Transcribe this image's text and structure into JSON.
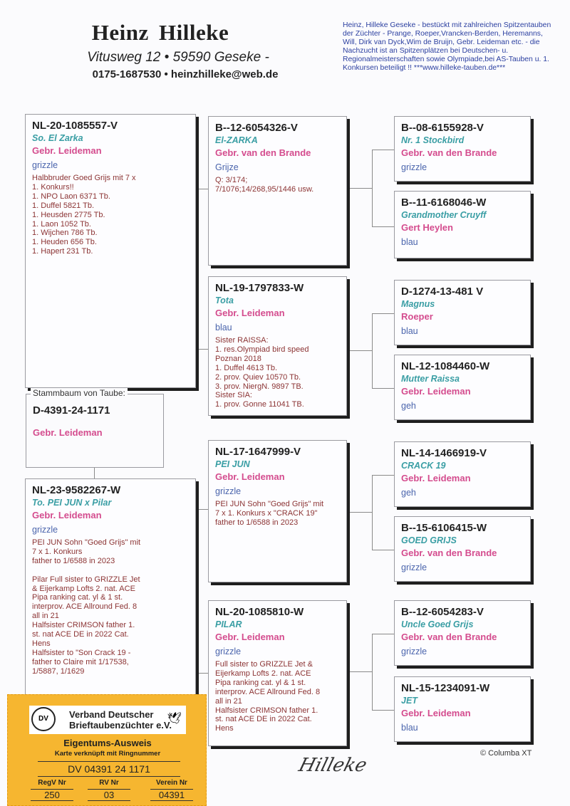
{
  "header": {
    "title": "Heinz  Hilleke",
    "address": "Vitusweg 12 • 59590  Geseke -",
    "contact": "0175-1687530 • heinzhilleke@web.de",
    "blurb": "Heinz, Hilleke Geseke - bestückt mit zahlreichen Spitzentauben der Züchter - Prange, Roeper,Vrancken-Berden, Heremanns, Will, Dirk van Dyck,Wim de Bruijn, Gebr. Leideman  etc. - die Nachzucht ist  an Spitzenplätzen bei  Deutschen- u. Regionalmeisterschaften sowie Olympiade,bei  AS-Tauben u. 1. Konkursen beteiligt !! ***www.hilleke-tauben.de***"
  },
  "subject": {
    "legend": "Stammbaum von Taube:",
    "ring": "D-4391-24-1171",
    "breeder": "Gebr. Leideman"
  },
  "pedigree": {
    "sire": {
      "ring": "NL-20-1085557-V",
      "name": "So. El Zarka",
      "breeder": "Gebr. Leideman",
      "color": "grizzle",
      "notes": [
        "Halbbruder Goed Grijs mit 7 x",
        "1. Konkurs!!",
        "1. NPO Laon 6371 Tb.",
        "1. Duffel 5821 Tb.",
        "1. Heusden 2775 Tb.",
        "1. Laon 1052 Tb.",
        "1. Wijchen 786 Tb.",
        "1. Heuden 656 Tb.",
        "1. Hapert 231 Tb."
      ]
    },
    "dam": {
      "ring": "NL-23-9582267-W",
      "name": "To. PEI JUN  x Pilar",
      "breeder": "Gebr. Leideman",
      "color": "grizzle",
      "notes": [
        "PEI JUN Sohn \"Goed Grijs\" mit",
        "7 x 1. Konkurs",
        "father to 1/6588 in 2023",
        "",
        "Pilar Full sister to GRIZZLE Jet",
        "& Eijerkamp Lofts 2. nat. ACE",
        "Pipa ranking cat. yl & 1 st.",
        "interprov. ACE Allround Fed. 8",
        "all in 21",
        "Halfsister CRIMSON  father 1.",
        "st. nat ACE DE in 2022 Cat.",
        "Hens",
        "Halfsister to \"Son Crack 19 -",
        "father to Claire mit 1/17538,",
        "1/5887, 1/1629"
      ]
    },
    "ss": {
      "ring": "B--12-6054326-V",
      "name": "El-ZARKA",
      "breeder": "Gebr. van den Brande",
      "color": "Grijze",
      "notes": [
        "Q: 3/174;",
        "7/1076;14/268,95/1446 usw."
      ]
    },
    "sd": {
      "ring": "NL-19-1797833-W",
      "name": "Tota",
      "breeder": "Gebr. Leideman",
      "color": "blau",
      "notes": [
        "Sister RAISSA:",
        "1. res.Olympiad bird speed",
        "Poznan 2018",
        "1. Duffel 4613 Tb.",
        "2. prov. Quiev 10570 Tb.",
        "3. prov. NiergN. 9897 TB.",
        "Sister SIA:",
        "1. prov. Gonne 11041 TB."
      ]
    },
    "ds": {
      "ring": "NL-17-1647999-V",
      "name": "PEI JUN",
      "breeder": "Gebr. Leideman",
      "color": "grizzle",
      "notes": [
        "PEI JUN Sohn \"Goed Grijs\" mit",
        "7 x 1. Konkurs x \"CRACK 19\"",
        "father to 1/6588 in 2023"
      ]
    },
    "dd": {
      "ring": "NL-20-1085810-W",
      "name": "PILAR",
      "breeder": "Gebr. Leideman",
      "color": "grizzle",
      "notes": [
        "Full sister to GRIZZLE Jet &",
        "Eijerkamp Lofts 2. nat. ACE",
        "Pipa ranking cat. yl & 1 st.",
        "interprov. ACE Allround Fed. 8",
        "all in 21",
        "Halfsister CRIMSON  father 1.",
        "st. nat ACE DE in 2022 Cat.",
        "Hens"
      ]
    },
    "sss": {
      "ring": "B--08-6155928-V",
      "name": "Nr. 1 Stockbird",
      "breeder": "Gebr. van den Brande",
      "color": "grizzle",
      "notes": []
    },
    "ssd": {
      "ring": "B--11-6168046-W",
      "name": "Grandmother Cruyff",
      "breeder": "Gert Heylen",
      "color": "blau",
      "notes": []
    },
    "sds": {
      "ring": "D-1274-13-481 V",
      "name": "Magnus",
      "breeder": "Roeper",
      "color": "blau",
      "notes": []
    },
    "sdd": {
      "ring": "NL-12-1084460-W",
      "name": "Mutter Raissa",
      "breeder": "Gebr. Leideman",
      "color": "geh",
      "notes": []
    },
    "dss": {
      "ring": "NL-14-1466919-V",
      "name": "CRACK 19",
      "breeder": "Gebr. Leideman",
      "color": "geh",
      "notes": []
    },
    "dsd": {
      "ring": "B--15-6106415-W",
      "name": "GOED GRIJS",
      "breeder": "Gebr. van den Brande",
      "color": "grizzle",
      "notes": []
    },
    "dds": {
      "ring": "B--12-6054283-V",
      "name": "Uncle Goed Grijs",
      "breeder": "Gebr. van den Brande",
      "color": "grizzle",
      "notes": []
    },
    "ddd": {
      "ring": "NL-15-1234091-W",
      "name": "JET",
      "breeder": "Gebr. Leideman",
      "color": "blau",
      "notes": []
    }
  },
  "card": {
    "org_line1": "Verband Deutscher",
    "org_line2": "Brieftaubenzüchter e.V.",
    "logo_text": "DV",
    "title": "Eigentums-Ausweis",
    "subtitle": "Karte verknüpft mit Ringnummer",
    "ring": "DV 04391 24 1171",
    "fields": [
      {
        "label": "RegV Nr",
        "value": "250"
      },
      {
        "label": "RV Nr",
        "value": "03"
      },
      {
        "label": "Verein Nr",
        "value": "04391"
      }
    ]
  },
  "signature": "Hilleke",
  "copyright": "© Columba XT"
}
